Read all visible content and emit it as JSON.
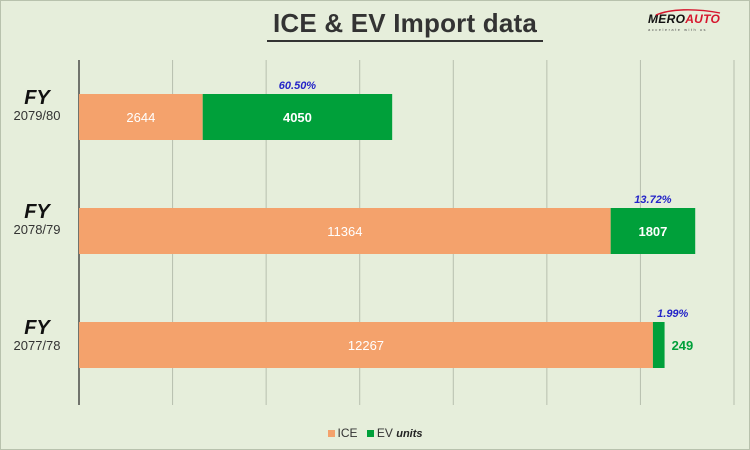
{
  "title": "ICE & EV Import data",
  "logo": {
    "brand_left": "MERO",
    "brand_right": "AUTO",
    "tagline": "accelerate with us",
    "accent_color": "#d6162d"
  },
  "colors": {
    "ice": "#f4a26c",
    "ev": "#00a03a",
    "pct": "#2424c8",
    "grid": "#b7bfae",
    "axis": "#222222"
  },
  "chart_data": {
    "type": "bar",
    "orientation": "horizontal",
    "stacked": true,
    "categories": [
      {
        "prefix": "FY",
        "year": "2079/80"
      },
      {
        "prefix": "FY",
        "year": "2078/79"
      },
      {
        "prefix": "FY",
        "year": "2077/78"
      }
    ],
    "series": [
      {
        "name": "ICE",
        "values": [
          2644,
          11364,
          12267
        ]
      },
      {
        "name": "EV",
        "values": [
          4050,
          1807,
          249
        ]
      }
    ],
    "ev_share_labels": [
      "60.50%",
      "13.72%",
      "1.99%"
    ],
    "xlim": [
      0,
      14000
    ],
    "grid": true,
    "legend": {
      "position": "bottom",
      "note": "units"
    }
  }
}
